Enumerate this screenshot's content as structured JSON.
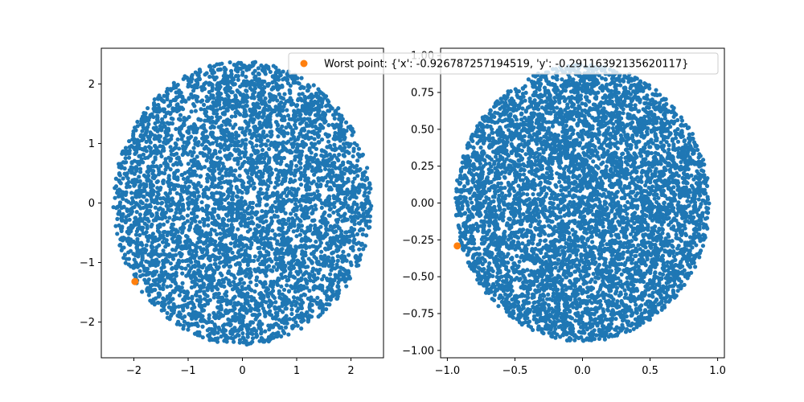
{
  "chart_data": [
    {
      "type": "scatter",
      "xlim": [
        -2.6,
        2.6
      ],
      "ylim": [
        -2.6,
        2.6
      ],
      "xticks": [
        -2,
        -1,
        0,
        1,
        2
      ],
      "yticks": [
        -2,
        -1,
        0,
        1,
        2
      ],
      "xtick_labels": [
        "−2",
        "−1",
        "0",
        "1",
        "2"
      ],
      "ytick_labels": [
        "−2",
        "−1",
        "0",
        "1",
        "2"
      ],
      "grid": false,
      "series": [
        {
          "color": "#1f77b4",
          "distribution": "disk",
          "radius": 2.38,
          "count": 5000
        },
        {
          "color": "#ff7f0e",
          "points": [
            [
              -1.98,
              -1.32
            ]
          ]
        }
      ]
    },
    {
      "type": "scatter",
      "xlim": [
        -1.05,
        1.05
      ],
      "ylim": [
        -1.05,
        1.05
      ],
      "xticks": [
        -1.0,
        -0.5,
        0.0,
        0.5,
        1.0
      ],
      "yticks": [
        -1.0,
        -0.75,
        -0.5,
        -0.25,
        0.0,
        0.25,
        0.5,
        0.75,
        1.0
      ],
      "xtick_labels": [
        "−1.0",
        "−0.5",
        "0.0",
        "0.5",
        "1.0"
      ],
      "ytick_labels": [
        "−1.00",
        "−0.75",
        "−0.50",
        "−0.25",
        "0.00",
        "0.25",
        "0.50",
        "0.75",
        "1.00"
      ],
      "grid": false,
      "series": [
        {
          "color": "#1f77b4",
          "distribution": "disk",
          "radius": 0.94,
          "count": 6000
        },
        {
          "name": "Worst point: {'x': -0.926787257194519, 'y': -0.29116392135620117}",
          "color": "#ff7f0e",
          "points": [
            [
              -0.926787257194519,
              -0.29116392135620117
            ]
          ]
        }
      ],
      "legend": "top-right"
    }
  ]
}
